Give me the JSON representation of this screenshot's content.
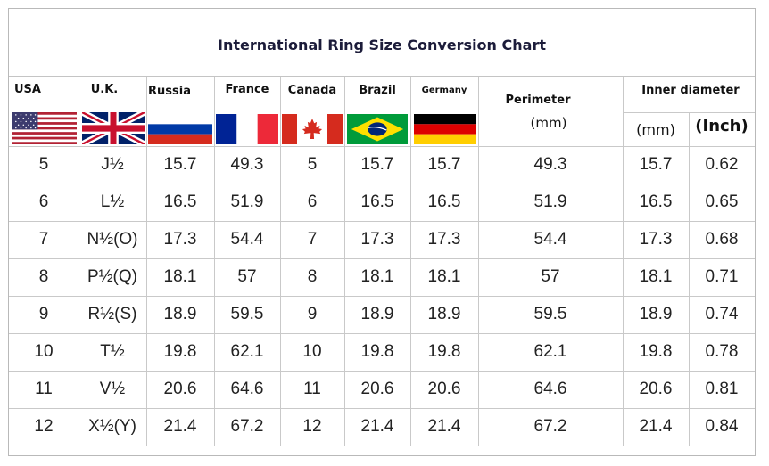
{
  "title": "International Ring Size Conversion Chart",
  "headers": {
    "usa": "USA",
    "uk": "U.K.",
    "russia": "Russia",
    "france": "France",
    "canada": "Canada",
    "brazil": "Brazil",
    "germany": "Germany",
    "perimeter": "Perimeter",
    "perimeter_unit": "(mm)",
    "inner_diameter": "Inner diameter",
    "inner_mm": "(mm)",
    "inner_inch": "(Inch)"
  },
  "flags": [
    "usa-flag",
    "uk-flag",
    "russia-flag",
    "france-flag",
    "canada-flag",
    "brazil-flag",
    "germany-flag"
  ],
  "rows": [
    [
      "5",
      "J½",
      "15.7",
      "49.3",
      "5",
      "15.7",
      "15.7",
      "49.3",
      "15.7",
      "0.62"
    ],
    [
      "6",
      "L½",
      "16.5",
      "51.9",
      "6",
      "16.5",
      "16.5",
      "51.9",
      "16.5",
      "0.65"
    ],
    [
      "7",
      "N½(O)",
      "17.3",
      "54.4",
      "7",
      "17.3",
      "17.3",
      "54.4",
      "17.3",
      "0.68"
    ],
    [
      "8",
      "P½(Q)",
      "18.1",
      "57",
      "8",
      "18.1",
      "18.1",
      "57",
      "18.1",
      "0.71"
    ],
    [
      "9",
      "R½(S)",
      "18.9",
      "59.5",
      "9",
      "18.9",
      "18.9",
      "59.5",
      "18.9",
      "0.74"
    ],
    [
      "10",
      "T½",
      "19.8",
      "62.1",
      "10",
      "19.8",
      "19.8",
      "62.1",
      "19.8",
      "0.78"
    ],
    [
      "11",
      "V½",
      "20.6",
      "64.6",
      "11",
      "20.6",
      "20.6",
      "64.6",
      "20.6",
      "0.81"
    ],
    [
      "12",
      "X½(Y)",
      "21.4",
      "67.2",
      "12",
      "21.4",
      "21.4",
      "67.2",
      "21.4",
      "0.84"
    ]
  ]
}
